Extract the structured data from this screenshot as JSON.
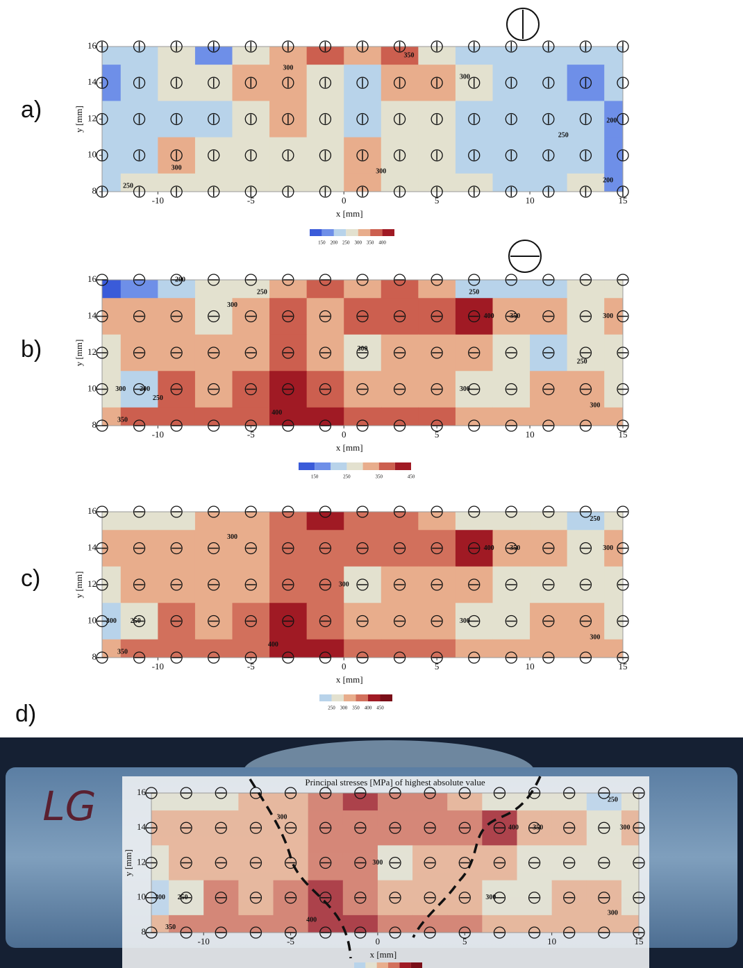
{
  "chart_data": [
    {
      "type": "contour",
      "panel_label": "a)",
      "x_label": "x [mm]",
      "y_label": "y [mm]",
      "xlim": [
        -13,
        15
      ],
      "ylim": [
        8,
        16
      ],
      "xticks": [
        -10,
        -5,
        0,
        5,
        10,
        15
      ],
      "yticks": [
        8,
        10,
        12,
        14,
        16
      ],
      "x": [
        -13,
        -11,
        -9,
        -7,
        -5,
        -3,
        -1,
        1,
        3,
        5,
        7,
        9,
        11,
        13,
        15
      ],
      "y": [
        16,
        14,
        12,
        10,
        8
      ],
      "values": [
        [
          230,
          240,
          260,
          180,
          270,
          300,
          360,
          320,
          360,
          280,
          240,
          230,
          200,
          240,
          230
        ],
        [
          190,
          240,
          260,
          250,
          310,
          320,
          260,
          240,
          300,
          340,
          280,
          230,
          210,
          190,
          230
        ],
        [
          230,
          230,
          240,
          240,
          260,
          320,
          260,
          220,
          260,
          250,
          240,
          240,
          230,
          210,
          190
        ],
        [
          230,
          240,
          300,
          260,
          250,
          280,
          270,
          300,
          260,
          250,
          240,
          230,
          230,
          220,
          190
        ],
        [
          240,
          250,
          260,
          270,
          280,
          280,
          290,
          300,
          280,
          260,
          250,
          240,
          240,
          250,
          190
        ]
      ],
      "levels": [
        100,
        150,
        200,
        250,
        300,
        350,
        400,
        450
      ],
      "colors": [
        "#3a5bd9",
        "#6e8fe8",
        "#b8d3ea",
        "#e3e1cf",
        "#e8ad8c",
        "#cc5f4f",
        "#a01a24"
      ],
      "colorbar_ticks": [
        150,
        200,
        250,
        300,
        350,
        400
      ],
      "annotations": [
        {
          "label": 300,
          "x": -3,
          "y": 14.8
        },
        {
          "label": 350,
          "x": 3.5,
          "y": 15.5
        },
        {
          "label": 300,
          "x": 6.5,
          "y": 14.3
        },
        {
          "label": 250,
          "x": 11.8,
          "y": 11.1
        },
        {
          "label": 200,
          "x": 14.4,
          "y": 11.9
        },
        {
          "label": 300,
          "x": -9,
          "y": 9.3
        },
        {
          "label": 300,
          "x": 2,
          "y": 9.1
        },
        {
          "label": 250,
          "x": -11.6,
          "y": 8.3
        },
        {
          "label": 200,
          "x": 14.2,
          "y": 8.6
        }
      ]
    },
    {
      "type": "contour",
      "panel_label": "b)",
      "x_label": "x [mm]",
      "y_label": "y [mm]",
      "xlim": [
        -13,
        15
      ],
      "ylim": [
        8,
        16
      ],
      "xticks": [
        -10,
        -5,
        0,
        5,
        10,
        15
      ],
      "yticks": [
        8,
        10,
        12,
        14,
        16
      ],
      "x": [
        -13,
        -11,
        -9,
        -7,
        -5,
        -3,
        -1,
        1,
        3,
        5,
        7,
        9,
        11,
        13,
        15
      ],
      "y": [
        16,
        14,
        12,
        10,
        8
      ],
      "values": [
        [
          130,
          180,
          230,
          250,
          280,
          340,
          350,
          340,
          350,
          300,
          230,
          240,
          240,
          250,
          270
        ],
        [
          320,
          320,
          310,
          290,
          330,
          360,
          340,
          350,
          350,
          360,
          410,
          330,
          300,
          290,
          300
        ],
        [
          270,
          320,
          310,
          330,
          340,
          350,
          340,
          290,
          340,
          320,
          330,
          270,
          230,
          270,
          280
        ],
        [
          250,
          210,
          350,
          310,
          350,
          400,
          360,
          330,
          330,
          330,
          270,
          290,
          300,
          300,
          290
        ],
        [
          330,
          350,
          360,
          360,
          390,
          420,
          400,
          380,
          380,
          360,
          340,
          330,
          320,
          340,
          330
        ]
      ],
      "levels": [
        100,
        150,
        200,
        250,
        300,
        350,
        400,
        450
      ],
      "colors": [
        "#3a5bd9",
        "#6e8fe8",
        "#b8d3ea",
        "#e3e1cf",
        "#e8ad8c",
        "#cc5f4f",
        "#a01a24"
      ],
      "colorbar_ticks": [
        150,
        250,
        350,
        450
      ],
      "annotations": [
        {
          "label": 200,
          "x": -8.8,
          "y": 16
        },
        {
          "label": 250,
          "x": -4.4,
          "y": 15.3
        },
        {
          "label": 300,
          "x": -6,
          "y": 14.6
        },
        {
          "label": 250,
          "x": 7,
          "y": 15.3
        },
        {
          "label": 400,
          "x": 7.8,
          "y": 14
        },
        {
          "label": 350,
          "x": 9.2,
          "y": 14
        },
        {
          "label": 300,
          "x": 14.2,
          "y": 14
        },
        {
          "label": 300,
          "x": 1,
          "y": 12.2
        },
        {
          "label": 250,
          "x": 12.8,
          "y": 11.5
        },
        {
          "label": 300,
          "x": -12,
          "y": 10
        },
        {
          "label": 200,
          "x": -10.7,
          "y": 10
        },
        {
          "label": 250,
          "x": -10,
          "y": 9.5
        },
        {
          "label": 300,
          "x": 6.5,
          "y": 10
        },
        {
          "label": 300,
          "x": 13.5,
          "y": 9.1
        },
        {
          "label": 400,
          "x": -3.6,
          "y": 8.7
        },
        {
          "label": 350,
          "x": -11.9,
          "y": 8.3
        }
      ]
    },
    {
      "type": "contour",
      "panel_label": "c)",
      "x_label": "x [mm]",
      "y_label": "y [mm]",
      "xlim": [
        -13,
        15
      ],
      "ylim": [
        8,
        16
      ],
      "xticks": [
        -10,
        -5,
        0,
        5,
        10,
        15
      ],
      "yticks": [
        8,
        10,
        12,
        14,
        16
      ],
      "x": [
        -13,
        -11,
        -9,
        -7,
        -5,
        -3,
        -1,
        1,
        3,
        5,
        7,
        9,
        11,
        13,
        15
      ],
      "y": [
        16,
        14,
        12,
        10,
        8
      ],
      "values": [
        [
          260,
          280,
          290,
          300,
          310,
          360,
          420,
          360,
          370,
          330,
          260,
          270,
          250,
          240,
          260
        ],
        [
          320,
          320,
          310,
          300,
          330,
          360,
          350,
          360,
          360,
          370,
          420,
          330,
          300,
          290,
          300
        ],
        [
          280,
          320,
          310,
          340,
          340,
          360,
          350,
          290,
          340,
          330,
          340,
          270,
          260,
          270,
          280
        ],
        [
          240,
          260,
          350,
          310,
          360,
          410,
          370,
          340,
          340,
          330,
          270,
          290,
          300,
          300,
          290
        ],
        [
          330,
          350,
          360,
          360,
          390,
          420,
          410,
          380,
          380,
          360,
          340,
          330,
          320,
          340,
          330
        ]
      ],
      "levels": [
        200,
        250,
        300,
        350,
        400,
        450,
        500
      ],
      "colors": [
        "#b8d3ea",
        "#e3e1cf",
        "#e8ad8c",
        "#d2705c",
        "#a01a24",
        "#7a0e18"
      ],
      "colorbar_ticks": [
        250,
        300,
        350,
        400,
        450
      ],
      "annotations": [
        {
          "label": 300,
          "x": -6,
          "y": 14.6
        },
        {
          "label": 400,
          "x": 7.8,
          "y": 14
        },
        {
          "label": 350,
          "x": 9.2,
          "y": 14
        },
        {
          "label": 300,
          "x": 14.2,
          "y": 14
        },
        {
          "label": 250,
          "x": 13.5,
          "y": 15.6
        },
        {
          "label": 300,
          "x": 0,
          "y": 12
        },
        {
          "label": 300,
          "x": -12.5,
          "y": 10
        },
        {
          "label": 250,
          "x": -11.2,
          "y": 10
        },
        {
          "label": 300,
          "x": 6.5,
          "y": 10
        },
        {
          "label": 300,
          "x": 13.5,
          "y": 9.1
        },
        {
          "label": 400,
          "x": -3.8,
          "y": 8.7
        },
        {
          "label": 350,
          "x": -11.9,
          "y": 8.3
        }
      ]
    },
    {
      "type": "contour",
      "panel_label": "d)",
      "title": "Principal stresses [MPa] of highest absolute value",
      "photo_label": "LG",
      "x_label": "x [mm]",
      "y_label": "y [mm]",
      "xlim": [
        -13,
        15
      ],
      "ylim": [
        8,
        16
      ],
      "xticks": [
        -10,
        -5,
        0,
        5,
        10,
        15
      ],
      "yticks": [
        8,
        10,
        12,
        14,
        16
      ],
      "x": [
        -13,
        -11,
        -9,
        -7,
        -5,
        -3,
        -1,
        1,
        3,
        5,
        7,
        9,
        11,
        13,
        15
      ],
      "y": [
        16,
        14,
        12,
        10,
        8
      ],
      "values": [
        [
          260,
          280,
          290,
          300,
          310,
          360,
          420,
          360,
          370,
          330,
          260,
          270,
          250,
          240,
          260
        ],
        [
          320,
          320,
          310,
          300,
          330,
          360,
          350,
          360,
          360,
          370,
          420,
          330,
          300,
          290,
          300
        ],
        [
          280,
          320,
          310,
          340,
          340,
          360,
          350,
          290,
          340,
          330,
          340,
          270,
          260,
          270,
          280
        ],
        [
          240,
          260,
          350,
          310,
          360,
          410,
          370,
          340,
          340,
          330,
          270,
          290,
          300,
          300,
          290
        ],
        [
          330,
          350,
          360,
          360,
          390,
          420,
          410,
          380,
          380,
          360,
          340,
          330,
          320,
          340,
          330
        ]
      ],
      "levels": [
        200,
        250,
        300,
        350,
        400,
        450,
        500
      ],
      "colors": [
        "#b8d3ea",
        "#e3e1cf",
        "#e8ad8c",
        "#d2705c",
        "#a01a24",
        "#7a0e18"
      ],
      "annotations": [
        {
          "label": 300,
          "x": -5.5,
          "y": 14.6
        },
        {
          "label": 400,
          "x": 7.8,
          "y": 14
        },
        {
          "label": 350,
          "x": 9.2,
          "y": 14
        },
        {
          "label": 300,
          "x": 14.2,
          "y": 14
        },
        {
          "label": 250,
          "x": 13.5,
          "y": 15.6
        },
        {
          "label": 300,
          "x": 0,
          "y": 12
        },
        {
          "label": 300,
          "x": -12.5,
          "y": 10
        },
        {
          "label": 250,
          "x": -11.2,
          "y": 10
        },
        {
          "label": 300,
          "x": 6.5,
          "y": 10
        },
        {
          "label": 300,
          "x": 13.5,
          "y": 9.1
        },
        {
          "label": 400,
          "x": -3.8,
          "y": 8.7
        },
        {
          "label": 350,
          "x": -11.9,
          "y": 8.3
        }
      ]
    }
  ]
}
